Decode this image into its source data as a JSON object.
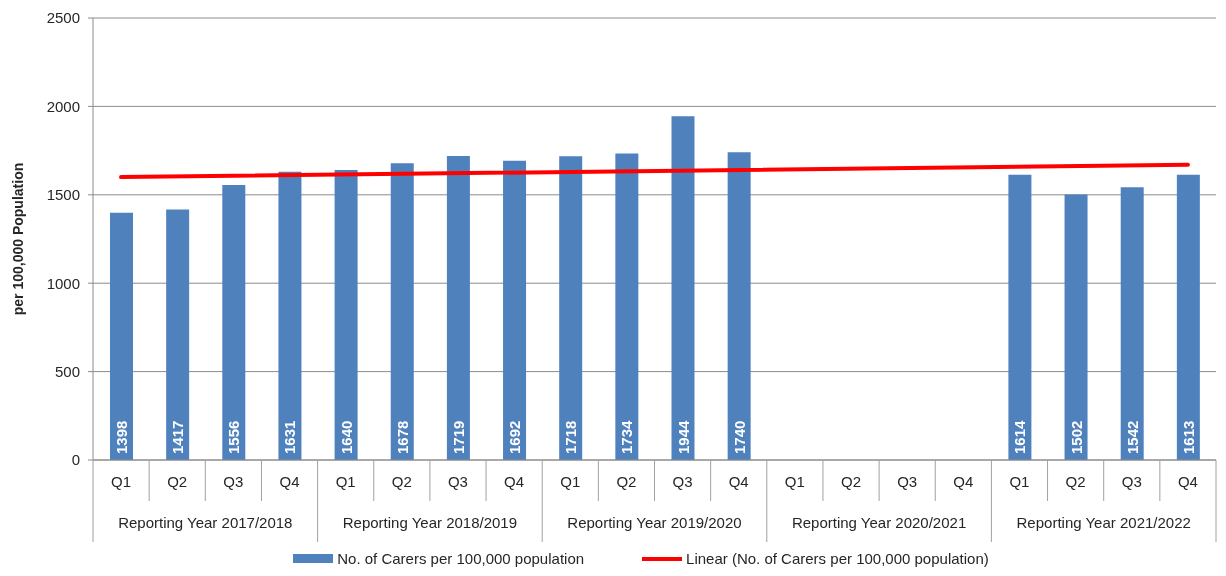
{
  "chart_data": {
    "type": "bar",
    "ylabel": "per 100,000 Population",
    "categories": [
      "Q1",
      "Q2",
      "Q3",
      "Q4",
      "Q1",
      "Q2",
      "Q3",
      "Q4",
      "Q1",
      "Q2",
      "Q3",
      "Q4",
      "Q1",
      "Q2",
      "Q3",
      "Q4",
      "Q1",
      "Q2",
      "Q3",
      "Q4"
    ],
    "annotations": [
      "Reporting Year 2017/2018",
      "Reporting Year 2018/2019",
      "Reporting Year 2019/2020",
      "Reporting Year 2020/2021",
      "Reporting Year 2021/2022"
    ],
    "series": [
      {
        "name": "No. of Carers per 100,000 population",
        "color": "#4f81bd",
        "values": [
          1398,
          1417,
          1556,
          1631,
          1640,
          1678,
          1719,
          1692,
          1718,
          1734,
          1944,
          1740,
          null,
          null,
          null,
          null,
          1614,
          1502,
          1542,
          1613
        ],
        "value_labels": [
          "1398",
          "1417",
          "1556",
          "1631",
          "1640",
          "1678",
          "1719",
          "1692",
          "1718",
          "1734",
          "1944",
          "1740",
          null,
          null,
          null,
          null,
          "1614",
          "1502",
          "1542",
          "1613"
        ]
      },
      {
        "name": "Linear (No. of Carers per 100,000 population)",
        "type": "line",
        "color": "#ff0000",
        "values": [
          1600,
          null,
          null,
          null,
          null,
          null,
          null,
          null,
          null,
          null,
          null,
          null,
          null,
          null,
          null,
          null,
          null,
          null,
          null,
          1670
        ]
      }
    ],
    "ylim": [
      0,
      2500
    ],
    "yticks": [
      0,
      500,
      1000,
      1500,
      2000,
      2500
    ],
    "grid": "y",
    "legend": "bottom"
  }
}
